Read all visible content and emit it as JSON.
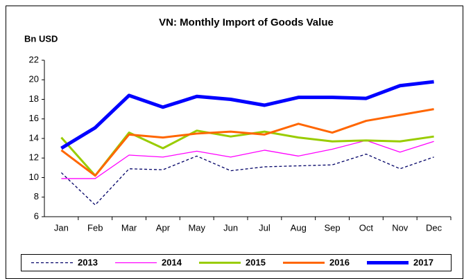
{
  "chart_data": {
    "type": "line",
    "title": "VN: Monthly Import of Goods Value",
    "y_label": "Bn USD",
    "categories": [
      "Jan",
      "Feb",
      "Mar",
      "Apr",
      "May",
      "Jun",
      "Jul",
      "Aug",
      "Sep",
      "Oct",
      "Nov",
      "Dec"
    ],
    "ylim": [
      6,
      22
    ],
    "yticks": [
      6,
      8,
      10,
      12,
      14,
      16,
      18,
      20,
      22
    ],
    "grid": false,
    "legend": "bottom",
    "series": [
      {
        "name": "2013",
        "color": "#000066",
        "values": [
          10.5,
          7.2,
          10.9,
          10.8,
          12.2,
          10.7,
          11.1,
          11.2,
          11.3,
          12.4,
          10.9,
          12.1
        ]
      },
      {
        "name": "2014",
        "color": "#ff00ff",
        "values": [
          9.9,
          9.9,
          12.3,
          12.1,
          12.7,
          12.1,
          12.8,
          12.2,
          12.9,
          13.8,
          12.6,
          13.7
        ]
      },
      {
        "name": "2015",
        "color": "#99cc00",
        "values": [
          14.1,
          10.2,
          14.6,
          13.0,
          14.8,
          14.2,
          14.7,
          14.1,
          13.7,
          13.8,
          13.7,
          14.2
        ]
      },
      {
        "name": "2016",
        "color": "#ff6600",
        "values": [
          12.8,
          10.2,
          14.4,
          14.1,
          14.5,
          14.7,
          14.4,
          15.5,
          14.6,
          15.8,
          16.4,
          17.0
        ]
      },
      {
        "name": "2017",
        "color": "#0000ff",
        "values": [
          13.0,
          15.1,
          18.4,
          17.2,
          18.3,
          18.0,
          17.4,
          18.2,
          18.2,
          18.1,
          19.4,
          19.8
        ]
      }
    ]
  }
}
